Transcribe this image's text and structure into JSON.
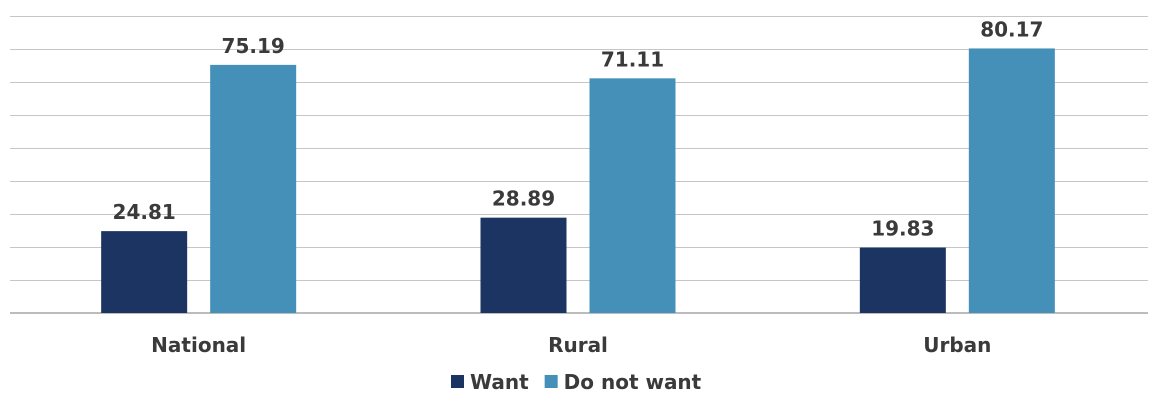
{
  "chart_data": {
    "type": "bar",
    "categories": [
      "National",
      "Rural",
      "Urban"
    ],
    "series": [
      {
        "name": "Want",
        "values": [
          24.81,
          28.89,
          19.83
        ],
        "color": "#1c3461"
      },
      {
        "name": "Do not want",
        "values": [
          75.19,
          71.11,
          80.17
        ],
        "color": "#4490b9"
      }
    ],
    "ylim": [
      0,
      90
    ],
    "grid": true,
    "grid_step": 10,
    "legend_position": "bottom-center",
    "data_labels": true
  }
}
